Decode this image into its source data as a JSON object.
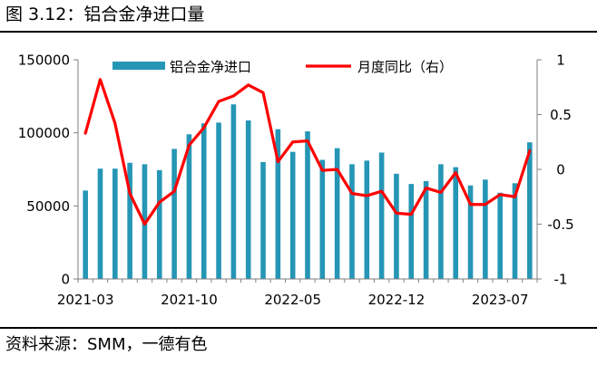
{
  "header": {
    "title": "图 3.12：铝合金净进口量"
  },
  "footer": {
    "source": "资料来源：SMM，一德有色"
  },
  "colors": {
    "bar": "#2596b5",
    "line": "#ff0000",
    "axis": "#7f7f7f"
  },
  "chart_data": {
    "type": "bar+line",
    "months": [
      "2021-03",
      "2021-04",
      "2021-05",
      "2021-06",
      "2021-07",
      "2021-08",
      "2021-09",
      "2021-10",
      "2021-11",
      "2021-12",
      "2022-01",
      "2022-02",
      "2022-03",
      "2022-04",
      "2022-05",
      "2022-06",
      "2022-07",
      "2022-08",
      "2022-09",
      "2022-10",
      "2022-11",
      "2022-12",
      "2023-01",
      "2023-02",
      "2023-03",
      "2023-04",
      "2023-05",
      "2023-06",
      "2023-07",
      "2023-08",
      "2023-09"
    ],
    "x_tick_labels": [
      "2021-03",
      "2021-10",
      "2022-05",
      "2022-12",
      "2023-07"
    ],
    "series": [
      {
        "name": "铝合金净进口",
        "type": "bar",
        "axis": "left",
        "values": [
          60500,
          75500,
          75500,
          79500,
          78500,
          74500,
          89000,
          99000,
          106500,
          107000,
          119500,
          108500,
          80000,
          102500,
          87000,
          101000,
          81500,
          89500,
          78500,
          81000,
          86500,
          72000,
          65000,
          67000,
          78500,
          76500,
          64000,
          68000,
          59000,
          65500,
          93500
        ]
      },
      {
        "name": "月度同比（右）",
        "type": "line",
        "axis": "right",
        "values": [
          0.33,
          0.82,
          0.42,
          -0.22,
          -0.5,
          -0.3,
          -0.2,
          0.22,
          0.38,
          0.62,
          0.67,
          0.77,
          0.7,
          0.07,
          0.25,
          0.26,
          -0.01,
          0.0,
          -0.22,
          -0.24,
          -0.2,
          -0.4,
          -0.41,
          -0.17,
          -0.21,
          -0.03,
          -0.32,
          -0.32,
          -0.23,
          -0.25,
          0.17
        ]
      }
    ],
    "left_axis": {
      "min": 0,
      "max": 150000,
      "ticks": [
        0,
        50000,
        100000,
        150000
      ],
      "tick_labels": [
        "0",
        "50000",
        "100000",
        "150000"
      ]
    },
    "right_axis": {
      "min": -1,
      "max": 1,
      "ticks": [
        -1,
        -0.5,
        0,
        0.5,
        1
      ],
      "tick_labels": [
        "-1",
        "-0.5",
        "0",
        "0.5",
        "1"
      ]
    },
    "legend": {
      "position": "top",
      "items": [
        "铝合金净进口",
        "月度同比（右）"
      ]
    }
  }
}
